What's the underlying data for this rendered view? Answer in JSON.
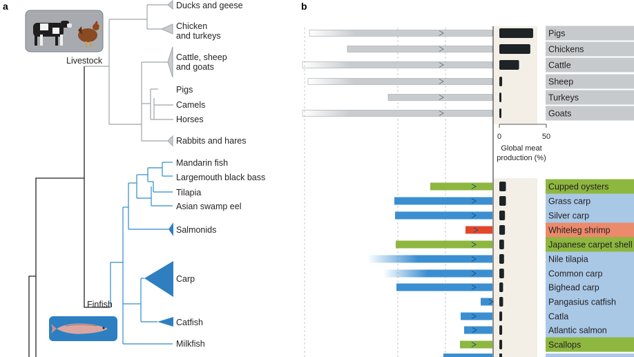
{
  "panel_a_label": "a",
  "panel_b_label": "b",
  "livestock_group": "Livestock",
  "finfish_group": "Finfish",
  "livestock_taxa": [
    "Ducks and geese",
    "Chicken\nand turkeys",
    "Cattle, sheep\nand goats",
    "Pigs",
    "Camels",
    "Horses",
    "Rabbits and hares"
  ],
  "fish_taxa": [
    "Mandarin fish",
    "Largemouth black bass",
    "Tilapia",
    "Asian swamp eel",
    "Salmonids",
    "Carp",
    "Catfish",
    "Milkfish"
  ],
  "axis": {
    "label": "Global meat\nproduction (%)",
    "ticks": [
      0,
      50
    ],
    "range": [
      0,
      50
    ]
  },
  "colors": {
    "livestock": "#c9cccf",
    "finfish": "#3b8fd1",
    "mollusc": "#8db73f",
    "crustacean": "#e2472c",
    "tree_livestock": "#9ea3a8",
    "tree_fish": "#2a8bc7"
  },
  "species": [
    {
      "name": "Pigs",
      "group": "livestock",
      "production": 36
    },
    {
      "name": "Chickens",
      "group": "livestock",
      "production": 33
    },
    {
      "name": "Cattle",
      "group": "livestock",
      "production": 21
    },
    {
      "name": "Sheep",
      "group": "livestock",
      "production": 3
    },
    {
      "name": "Turkeys",
      "group": "livestock",
      "production": 2
    },
    {
      "name": "Goats",
      "group": "livestock",
      "production": 2
    },
    {
      "name": "Cupped oysters",
      "group": "mollusc",
      "production": 7
    },
    {
      "name": "Grass carp",
      "group": "finfish",
      "production": 7
    },
    {
      "name": "Silver carp",
      "group": "finfish",
      "production": 6
    },
    {
      "name": "Whiteleg shrimp",
      "group": "crustacean",
      "production": 6
    },
    {
      "name": "Japanese carpet shell",
      "group": "mollusc",
      "production": 5
    },
    {
      "name": "Nile tilapia",
      "group": "finfish",
      "production": 5
    },
    {
      "name": "Common carp",
      "group": "finfish",
      "production": 5
    },
    {
      "name": "Bighead carp",
      "group": "finfish",
      "production": 4
    },
    {
      "name": "Pangasius catfish",
      "group": "finfish",
      "production": 4
    },
    {
      "name": "Catla",
      "group": "finfish",
      "production": 3
    },
    {
      "name": "Atlantic salmon",
      "group": "finfish",
      "production": 3
    },
    {
      "name": "Scallops",
      "group": "mollusc",
      "production": 3
    }
  ]
}
